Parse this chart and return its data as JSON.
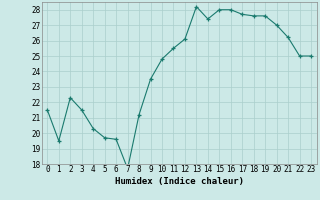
{
  "x": [
    0,
    1,
    2,
    3,
    4,
    5,
    6,
    7,
    8,
    9,
    10,
    11,
    12,
    13,
    14,
    15,
    16,
    17,
    18,
    19,
    20,
    21,
    22,
    23
  ],
  "y": [
    21.5,
    19.5,
    22.3,
    21.5,
    20.3,
    19.7,
    19.6,
    17.7,
    21.2,
    23.5,
    24.8,
    25.5,
    26.1,
    28.2,
    27.4,
    28.0,
    28.0,
    27.7,
    27.6,
    27.6,
    27.0,
    26.2,
    25.0,
    25.0
  ],
  "line_color": "#1a7a6e",
  "marker": "+",
  "xlabel": "Humidex (Indice chaleur)",
  "xlim": [
    -0.5,
    23.5
  ],
  "ylim": [
    18,
    28.5
  ],
  "yticks": [
    18,
    19,
    20,
    21,
    22,
    23,
    24,
    25,
    26,
    27,
    28
  ],
  "xtick_labels": [
    "0",
    "1",
    "2",
    "3",
    "4",
    "5",
    "6",
    "7",
    "8",
    "9",
    "10",
    "11",
    "12",
    "13",
    "14",
    "15",
    "16",
    "17",
    "18",
    "19",
    "20",
    "21",
    "22",
    "23"
  ],
  "bg_color": "#cce9e7",
  "grid_color": "#aacfcc",
  "label_fontsize": 6.5,
  "tick_fontsize": 5.5
}
